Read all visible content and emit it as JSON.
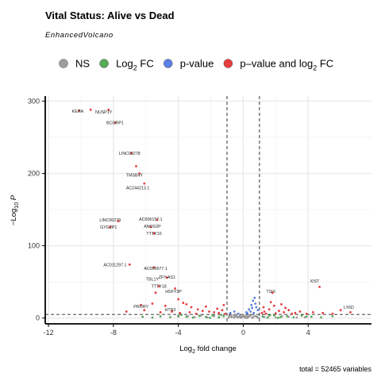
{
  "title": "Vital Status: Alive vs Dead",
  "subtitle": "EnhancedVolcano",
  "caption": "total = 52465 variables",
  "legend": [
    {
      "label": "NS",
      "color": "#8c8c8c"
    },
    {
      "label": "Log",
      "sub": "2",
      "suffix": " FC",
      "color": "#3a9b3a"
    },
    {
      "label": "p-value",
      "color": "#4169e1"
    },
    {
      "label": "p–value and log",
      "sub": "2",
      "suffix": " FC",
      "color": "#e41a1c"
    }
  ],
  "chart_data": {
    "type": "scatter",
    "title": "Vital Status: Alive vs Dead",
    "subtitle": "EnhancedVolcano",
    "xlabel": "Log₂ fold change",
    "ylabel": "−Log₁₀ P",
    "xlim": [
      -12.2,
      7.9
    ],
    "ylim": [
      -8,
      307
    ],
    "xticks": [
      -12,
      -8,
      -4,
      0,
      4
    ],
    "yticks": [
      0,
      100,
      200,
      300
    ],
    "fc_cutoff": 1,
    "p_cutoff_y": 5,
    "grid": true,
    "legend_position": "top",
    "series": [
      {
        "name": "NS",
        "color": "#8c8c8c",
        "points": [
          [
            -0.9,
            0.6
          ],
          [
            -0.7,
            1.2
          ],
          [
            -0.5,
            2.1
          ],
          [
            -0.35,
            0.9
          ],
          [
            -0.2,
            3.2
          ],
          [
            -0.1,
            1.5
          ],
          [
            0.05,
            2.6
          ],
          [
            0.15,
            0.7
          ],
          [
            0.3,
            1.9
          ],
          [
            0.45,
            3.4
          ],
          [
            0.6,
            1.1
          ],
          [
            0.8,
            2.3
          ],
          [
            0.95,
            0.5
          ],
          [
            -0.85,
            3.1
          ],
          [
            -0.6,
            4.0
          ],
          [
            -0.4,
            2.8
          ],
          [
            -0.25,
            1.7
          ],
          [
            0.0,
            4.2
          ],
          [
            0.2,
            3.8
          ],
          [
            0.35,
            2.2
          ],
          [
            0.55,
            0.4
          ],
          [
            0.7,
            3.0
          ],
          [
            -0.15,
            0.3
          ],
          [
            0.1,
            1.1
          ],
          [
            -0.55,
            0.8
          ],
          [
            0.4,
            4.4
          ],
          [
            -0.75,
            2.4
          ],
          [
            0.85,
            1.6
          ],
          [
            -0.05,
            2.0
          ],
          [
            0.25,
            0.2
          ],
          [
            -1.5,
            1.3
          ],
          [
            -1.8,
            2.9
          ],
          [
            -2.2,
            0.7
          ],
          [
            -2.6,
            3.6
          ],
          [
            -3.0,
            1.4
          ],
          [
            -3.4,
            2.6
          ],
          [
            1.3,
            1.5
          ],
          [
            1.6,
            3.2
          ],
          [
            2.0,
            0.8
          ],
          [
            2.4,
            2.4
          ],
          [
            2.8,
            1.9
          ],
          [
            3.3,
            0.9
          ],
          [
            -4.0,
            2.2
          ],
          [
            3.8,
            1.2
          ]
        ]
      },
      {
        "name": "Log₂ FC",
        "color": "#3a9b3a",
        "points": [
          [
            -1.2,
            2.5
          ],
          [
            -1.5,
            0.9
          ],
          [
            -1.9,
            3.8
          ],
          [
            -2.3,
            1.6
          ],
          [
            -2.7,
            2.9
          ],
          [
            -3.1,
            0.6
          ],
          [
            -3.5,
            1.9
          ],
          [
            -4.0,
            3.1
          ],
          [
            -4.5,
            1.2
          ],
          [
            -5.1,
            2.4
          ],
          [
            -5.6,
            0.8
          ],
          [
            -6.2,
            1.7
          ],
          [
            1.2,
            2.2
          ],
          [
            1.5,
            0.7
          ],
          [
            1.9,
            3.6
          ],
          [
            2.3,
            1.4
          ],
          [
            2.7,
            2.7
          ],
          [
            3.1,
            1.0
          ],
          [
            3.6,
            3.3
          ],
          [
            4.2,
            1.8
          ],
          [
            4.8,
            0.9
          ],
          [
            5.5,
            2.6
          ],
          [
            -1.35,
            4.2
          ],
          [
            -2.05,
            0.4
          ],
          [
            1.65,
            4.4
          ],
          [
            2.15,
            0.3
          ],
          [
            -3.8,
            4.5
          ],
          [
            3.9,
            2.1
          ]
        ]
      },
      {
        "name": "p-value",
        "color": "#4169e1",
        "points": [
          [
            0.2,
            8
          ],
          [
            0.35,
            12
          ],
          [
            0.5,
            18
          ],
          [
            0.6,
            24
          ],
          [
            0.7,
            28
          ],
          [
            0.8,
            15
          ],
          [
            0.45,
            9
          ],
          [
            0.9,
            11
          ],
          [
            0.65,
            7
          ],
          [
            -0.3,
            6
          ],
          [
            -0.55,
            9
          ],
          [
            -0.8,
            7
          ],
          [
            0.25,
            6.5
          ],
          [
            0.75,
            20
          ],
          [
            0.55,
            14
          ]
        ]
      },
      {
        "name": "p–value and log₂ FC",
        "color": "#e41a1c",
        "points": [
          [
            -10.1,
            287
          ],
          [
            -9.4,
            288
          ],
          [
            -8.3,
            288
          ],
          [
            -7.9,
            270
          ],
          [
            -6.9,
            228
          ],
          [
            -6.6,
            210
          ],
          [
            -6.4,
            200
          ],
          [
            -6.1,
            186
          ],
          [
            -7.7,
            134
          ],
          [
            -8.2,
            126
          ],
          [
            -5.3,
            136
          ],
          [
            -5.5,
            117
          ],
          [
            -5.7,
            126
          ],
          [
            -7.0,
            74
          ],
          [
            -5.5,
            70
          ],
          [
            -4.7,
            56
          ],
          [
            -5.2,
            44
          ],
          [
            -5.4,
            35
          ],
          [
            -4.2,
            41
          ],
          [
            -4.0,
            26
          ],
          [
            -3.7,
            21
          ],
          [
            -3.5,
            19
          ],
          [
            -3.2,
            15
          ],
          [
            -4.8,
            17
          ],
          [
            -5.6,
            20
          ],
          [
            -6.3,
            18
          ],
          [
            -2.8,
            12
          ],
          [
            -2.5,
            10
          ],
          [
            -2.1,
            9
          ],
          [
            -1.8,
            8
          ],
          [
            -1.5,
            7
          ],
          [
            -1.3,
            11
          ],
          [
            -1.1,
            6
          ],
          [
            -2.9,
            6
          ],
          [
            -3.3,
            8
          ],
          [
            -3.9,
            7
          ],
          [
            -4.4,
            9
          ],
          [
            -5.1,
            8
          ],
          [
            -6.1,
            11
          ],
          [
            -7.2,
            9
          ],
          [
            -1.6,
            13
          ],
          [
            -2.3,
            16
          ],
          [
            -1.2,
            18
          ],
          [
            1.3,
            9
          ],
          [
            1.6,
            12
          ],
          [
            1.9,
            17
          ],
          [
            2.2,
            10
          ],
          [
            2.5,
            8
          ],
          [
            2.8,
            11
          ],
          [
            3.2,
            7
          ],
          [
            3.5,
            9
          ],
          [
            3.9,
            6
          ],
          [
            4.3,
            8
          ],
          [
            4.9,
            7
          ],
          [
            5.5,
            6
          ],
          [
            6.0,
            11
          ],
          [
            6.6,
            8
          ],
          [
            1.8,
            35
          ],
          [
            4.7,
            43
          ],
          [
            1.4,
            6
          ],
          [
            2.0,
            6.5
          ],
          [
            2.6,
            14
          ],
          [
            3.0,
            6
          ],
          [
            1.15,
            7
          ],
          [
            1.25,
            15
          ],
          [
            1.7,
            22
          ],
          [
            2.35,
            19
          ]
        ]
      }
    ],
    "annotations": [
      {
        "label": "KERA",
        "x": -10.2,
        "y": 286
      },
      {
        "label": "NUSP1Y",
        "x": -8.6,
        "y": 285
      },
      {
        "label": "BCORP1",
        "x": -7.9,
        "y": 270
      },
      {
        "label": "LINC00278",
        "x": -7.0,
        "y": 228
      },
      {
        "label": "TMSB4Y",
        "x": -6.7,
        "y": 198
      },
      {
        "label": "AC244213.1",
        "x": -6.5,
        "y": 180
      },
      {
        "label": "LINC00279",
        "x": -8.2,
        "y": 136
      },
      {
        "label": "GYG2P1",
        "x": -8.3,
        "y": 126
      },
      {
        "label": "AC006157.1",
        "x": -5.7,
        "y": 137
      },
      {
        "label": "ANOS2P",
        "x": -5.6,
        "y": 127
      },
      {
        "label": "TTTY10",
        "x": -5.5,
        "y": 117
      },
      {
        "label": "AC011297.1",
        "x": -7.9,
        "y": 74
      },
      {
        "label": "AC009977.1",
        "x": -5.4,
        "y": 69
      },
      {
        "label": "ZFY-AS1",
        "x": -4.7,
        "y": 57
      },
      {
        "label": "TBL1Y",
        "x": -5.6,
        "y": 54
      },
      {
        "label": "TTTY18",
        "x": -5.2,
        "y": 44
      },
      {
        "label": "HSFY3P",
        "x": -4.3,
        "y": 37
      },
      {
        "label": "PRORY",
        "x": -6.3,
        "y": 16
      },
      {
        "label": "HTN3",
        "x": -4.5,
        "y": 12
      },
      {
        "label": "XIST",
        "x": 4.4,
        "y": 51
      },
      {
        "label": "TSIX",
        "x": 1.7,
        "y": 37
      },
      {
        "label": "LY6D",
        "x": 6.5,
        "y": 15
      }
    ]
  }
}
